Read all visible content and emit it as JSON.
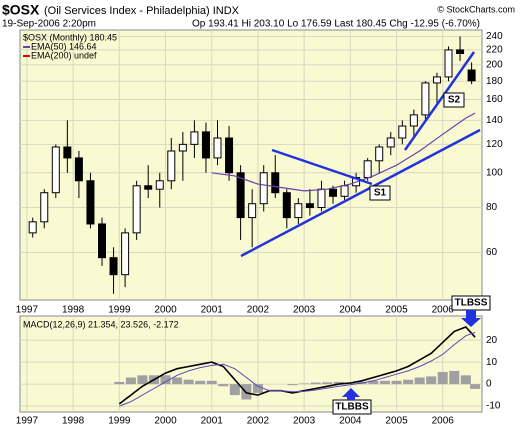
{
  "chart_data": [
    {
      "type": "candlestick",
      "symbol": "$OSX",
      "title": "(Oil Services Index - Philadelphia) INDX",
      "date": "19-Sep-2006 2:20pm",
      "quote": "Op 193.41 Hi 203.10 Lo 176.59 Last 180.45 Chg -12.95 (-6.70%)",
      "credit": "© StockCharts.com",
      "price_label": "$OSX (Monthly) 180.45",
      "log_scale": true,
      "grid": true,
      "x": [
        1997.125,
        1997.375,
        1997.625,
        1997.875,
        1998.125,
        1998.375,
        1998.625,
        1998.875,
        1999.125,
        1999.375,
        1999.625,
        1999.875,
        2000.125,
        2000.375,
        2000.625,
        2000.875,
        2001.125,
        2001.375,
        2001.625,
        2001.875,
        2002.125,
        2002.375,
        2002.625,
        2002.875,
        2003.125,
        2003.375,
        2003.625,
        2003.875,
        2004.125,
        2004.375,
        2004.625,
        2004.875,
        2005.125,
        2005.375,
        2005.625,
        2005.875,
        2006.125,
        2006.375,
        2006.625
      ],
      "open": [
        68,
        73,
        88,
        118,
        110,
        95,
        72,
        58,
        52,
        68,
        92,
        90,
        95,
        115,
        120,
        130,
        110,
        125,
        100,
        75,
        82,
        100,
        88,
        75,
        82,
        80,
        90,
        86,
        92,
        97,
        108,
        118,
        125,
        135,
        145,
        178,
        185,
        220,
        193.41
      ],
      "high": [
        75,
        90,
        120,
        140,
        115,
        100,
        75,
        62,
        70,
        95,
        105,
        100,
        125,
        130,
        140,
        138,
        140,
        135,
        105,
        90,
        105,
        112,
        90,
        85,
        90,
        95,
        92,
        95,
        100,
        110,
        120,
        130,
        140,
        150,
        180,
        190,
        225,
        240,
        203.1
      ],
      "low": [
        66,
        70,
        85,
        100,
        85,
        70,
        55,
        46,
        48,
        65,
        85,
        80,
        90,
        95,
        110,
        100,
        105,
        95,
        65,
        62,
        78,
        85,
        70,
        72,
        76,
        78,
        82,
        84,
        88,
        95,
        100,
        112,
        120,
        125,
        140,
        155,
        180,
        205,
        176.59
      ],
      "close": [
        73,
        88,
        118,
        110,
        95,
        72,
        58,
        52,
        68,
        92,
        90,
        95,
        115,
        120,
        130,
        110,
        125,
        100,
        75,
        82,
        100,
        88,
        75,
        82,
        80,
        90,
        86,
        92,
        97,
        108,
        118,
        125,
        135,
        145,
        178,
        185,
        220,
        215,
        180.45
      ],
      "series": [
        {
          "name": "EMA(50) 146.64",
          "color": "#6a3fb0",
          "x": [
            2001.0,
            2001.5,
            2002.0,
            2002.5,
            2003.0,
            2003.5,
            2004.0,
            2004.5,
            2005.0,
            2005.5,
            2006.0,
            2006.5,
            2006.7
          ],
          "values": [
            100,
            98,
            93,
            91,
            89,
            90,
            93,
            98,
            105,
            115,
            128,
            142,
            146.64
          ]
        },
        {
          "name": "EMA(200) undef",
          "color": "#e00000",
          "x": [],
          "values": []
        }
      ],
      "xlim": [
        1996.85,
        2006.85
      ],
      "xticks": [
        1997,
        1998,
        1999,
        2000,
        2001,
        2002,
        2003,
        2004,
        2005,
        2006
      ],
      "ylim": [
        44.2,
        250
      ],
      "yticks": [
        60,
        80,
        100,
        120,
        140,
        160,
        180,
        200,
        220,
        240
      ],
      "annotations": [
        "S1",
        "S2",
        "TLBSS"
      ]
    },
    {
      "type": "line",
      "title": "MACD(12,26,9) 21.354, 23.526, -2.172",
      "grid": true,
      "x": [
        1999.0,
        1999.25,
        1999.5,
        1999.75,
        2000.0,
        2000.25,
        2000.5,
        2000.75,
        2001.0,
        2001.25,
        2001.5,
        2001.75,
        2002.0,
        2002.25,
        2002.5,
        2002.75,
        2003.0,
        2003.25,
        2003.5,
        2003.75,
        2004.0,
        2004.25,
        2004.5,
        2004.75,
        2005.0,
        2005.25,
        2005.5,
        2005.75,
        2006.0,
        2006.25,
        2006.5,
        2006.7
      ],
      "series": [
        {
          "name": "MACD",
          "color": "#000000",
          "values": [
            -9,
            -5,
            -1,
            2,
            5,
            7,
            8,
            9,
            10,
            8,
            2,
            -4,
            -5,
            -3,
            -3,
            -4,
            -3,
            -2,
            -1,
            0,
            0.5,
            1.5,
            3,
            4.5,
            6,
            8,
            11,
            14,
            19,
            24,
            26,
            21.354
          ]
        },
        {
          "name": "Signal",
          "color": "#5a4ab8",
          "values": [
            -10,
            -8,
            -5,
            -2,
            1,
            4,
            6,
            7.5,
            8.5,
            9,
            7,
            3,
            -1,
            -3,
            -3,
            -3.5,
            -3.3,
            -2.7,
            -1.8,
            -1,
            -0.3,
            0.5,
            1.5,
            3,
            4.5,
            6,
            8,
            10.5,
            13.5,
            18,
            22,
            23.526
          ]
        }
      ],
      "histogram": {
        "color": "#a0a0a0",
        "values": [
          1,
          3,
          4,
          4,
          4,
          3,
          2,
          1.5,
          1.5,
          -1,
          -5,
          -7,
          -4,
          0,
          0,
          -0.5,
          0.3,
          0.7,
          0.8,
          1,
          0.8,
          1,
          1.5,
          1.5,
          1.5,
          2,
          3,
          3.5,
          5.5,
          6,
          4,
          -2.172
        ]
      },
      "xlim": [
        1996.85,
        2006.85
      ],
      "xticks": [
        1997,
        1998,
        1999,
        2000,
        2001,
        2002,
        2003,
        2004,
        2005,
        2006
      ],
      "ylim": [
        -12.7,
        31
      ],
      "yticks": [
        20,
        10,
        0,
        -10
      ],
      "annotations": [
        "TLBBS"
      ]
    }
  ]
}
